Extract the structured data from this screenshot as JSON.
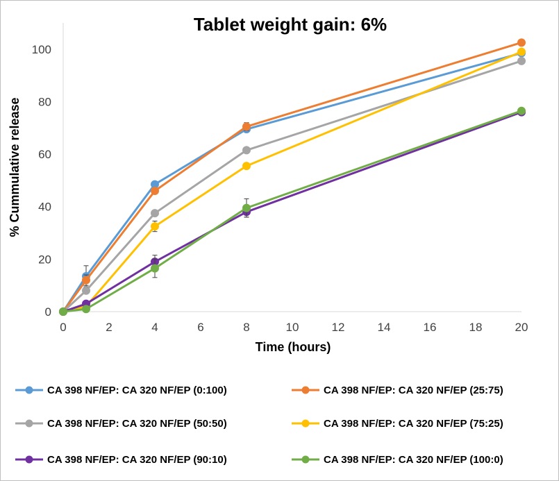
{
  "chart_data": {
    "type": "line",
    "title": "Tablet weight gain: 6%",
    "xlabel": "Time (hours)",
    "ylabel": "% Cummulative release",
    "xlim": [
      0,
      20
    ],
    "ylim": [
      0,
      110
    ],
    "xticks": [
      0,
      2,
      4,
      6,
      8,
      10,
      12,
      14,
      16,
      18,
      20
    ],
    "yticks": [
      0,
      20,
      40,
      60,
      80,
      100
    ],
    "grid": false,
    "legend_position": "bottom",
    "x": [
      0,
      1,
      4,
      8,
      20
    ],
    "series": [
      {
        "name": "CA 398 NF/EP: CA 320 NF/EP (0:100)",
        "color": "#5b9bd5",
        "values": [
          0,
          13.5,
          48.5,
          69.5,
          98.5
        ],
        "errors": [
          0,
          4,
          0.5,
          1,
          0.5
        ]
      },
      {
        "name": "CA 398 NF/EP: CA 320 NF/EP (25:75)",
        "color": "#ed7d31",
        "values": [
          0,
          12,
          46,
          70.5,
          102.5
        ],
        "errors": [
          0,
          2,
          1,
          1.5,
          0.5
        ]
      },
      {
        "name": "CA 398 NF/EP: CA 320 NF/EP (50:50)",
        "color": "#a5a5a5",
        "values": [
          0,
          8,
          37.5,
          61.5,
          95.5
        ],
        "errors": [
          0,
          1,
          1,
          1,
          0.5
        ]
      },
      {
        "name": "CA 398 NF/EP: CA 320 NF/EP (75:25)",
        "color": "#ffc000",
        "values": [
          0,
          2,
          32.5,
          55.5,
          99
        ],
        "errors": [
          0,
          0.5,
          2,
          1,
          0.5
        ]
      },
      {
        "name": "CA 398 NF/EP: CA 320 NF/EP (90:10)",
        "color": "#7030a0",
        "values": [
          0,
          3,
          19,
          38,
          76
        ],
        "errors": [
          0,
          1,
          2.5,
          2,
          0.5
        ]
      },
      {
        "name": "CA 398 NF/EP: CA 320 NF/EP (100:0)",
        "color": "#70ad47",
        "values": [
          0,
          1,
          16.5,
          39.5,
          76.5
        ],
        "errors": [
          0,
          0.5,
          3.5,
          3.5,
          0.5
        ]
      }
    ]
  }
}
